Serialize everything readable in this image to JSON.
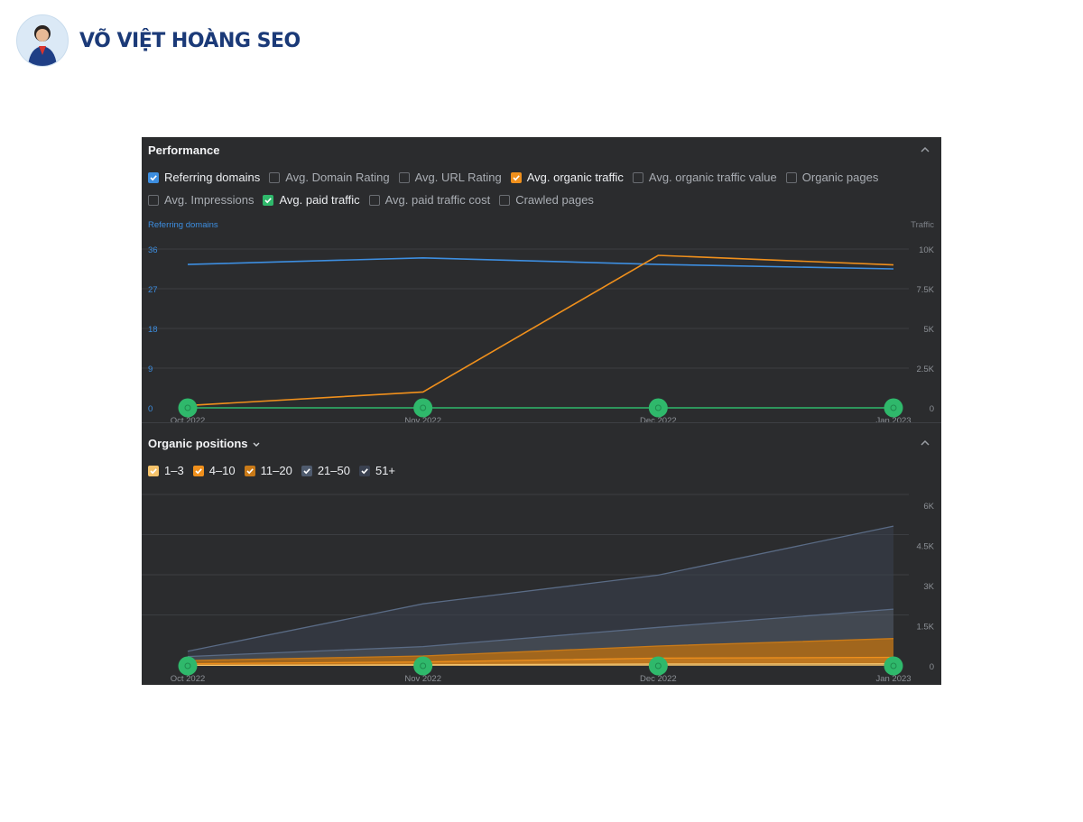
{
  "brand": {
    "name": "VÕ VIỆT HOÀNG SEO",
    "logo_icon": "avatar"
  },
  "performance": {
    "title": "Performance",
    "collapse_icon": "chevron-up-icon",
    "checkboxes": [
      {
        "label": "Referring domains",
        "checked": true,
        "color": "#3d8ee0"
      },
      {
        "label": "Avg. Domain Rating",
        "checked": false
      },
      {
        "label": "Avg. URL Rating",
        "checked": false
      },
      {
        "label": "Avg. organic traffic",
        "checked": true,
        "color": "#f0901c"
      },
      {
        "label": "Avg. organic traffic value",
        "checked": false
      },
      {
        "label": "Organic pages",
        "checked": false
      },
      {
        "label": "Avg. Impressions",
        "checked": false
      },
      {
        "label": "Avg. paid traffic",
        "checked": true,
        "color": "#2fb86b"
      },
      {
        "label": "Avg. paid traffic cost",
        "checked": false
      },
      {
        "label": "Crawled pages",
        "checked": false
      }
    ]
  },
  "organic": {
    "title": "Organic positions",
    "dropdown_icon": "chevron-down-icon",
    "collapse_icon": "chevron-up-icon",
    "checkboxes": [
      {
        "label": "1–3",
        "checked": true,
        "color": "#f5c36b"
      },
      {
        "label": "4–10",
        "checked": true,
        "color": "#f0901c"
      },
      {
        "label": "11–20",
        "checked": true,
        "color": "#c97a18"
      },
      {
        "label": "21–50",
        "checked": true,
        "color": "#4f5b6e"
      },
      {
        "label": "51+",
        "checked": true,
        "color": "#3a4150"
      }
    ]
  },
  "chart_data": [
    {
      "type": "line",
      "left_axis_label": "Referring domains",
      "right_axis_label": "Traffic",
      "x": [
        "Oct 2022",
        "Nov 2022",
        "Dec 2022",
        "Jan 2023"
      ],
      "left_ticks": [
        "36",
        "27",
        "18",
        "9",
        "0"
      ],
      "right_ticks": [
        "10K",
        "7.5K",
        "5K",
        "2.5K",
        "0"
      ],
      "ylim_left": [
        0,
        36
      ],
      "ylim_right": [
        0,
        10000
      ],
      "series": [
        {
          "name": "Referring domains",
          "axis": "left",
          "color": "#3d8ee0",
          "values": [
            32.5,
            34,
            32.5,
            31.5
          ]
        },
        {
          "name": "Avg. organic traffic",
          "axis": "right",
          "color": "#f0901c",
          "values": [
            150,
            1000,
            9600,
            9000
          ]
        },
        {
          "name": "Avg. paid traffic",
          "axis": "right",
          "color": "#2fb86b",
          "values": [
            0,
            0,
            0,
            0
          ]
        }
      ]
    },
    {
      "type": "area",
      "x": [
        "Oct 2022",
        "Nov 2022",
        "Dec 2022",
        "Jan 2023"
      ],
      "right_ticks": [
        "6K",
        "4.5K",
        "3K",
        "1.5K",
        "0"
      ],
      "ylim": [
        0,
        6000
      ],
      "stacked": true,
      "series": [
        {
          "name": "1–3",
          "color": "#f5c36b",
          "values": [
            20,
            40,
            70,
            80
          ]
        },
        {
          "name": "4–10",
          "color": "#f0901c",
          "values": [
            60,
            110,
            220,
            240
          ]
        },
        {
          "name": "11–20",
          "color": "#c97a18",
          "values": [
            120,
            220,
            450,
            700
          ]
        },
        {
          "name": "21–50",
          "color": "#56606f",
          "values": [
            150,
            350,
            700,
            1100
          ]
        },
        {
          "name": "51+",
          "color": "#3a4150",
          "values": [
            200,
            1600,
            1950,
            3100
          ]
        }
      ],
      "markers": [
        "Oct 2022",
        "Nov 2022",
        "Dec 2022",
        "Jan 2023"
      ]
    }
  ]
}
